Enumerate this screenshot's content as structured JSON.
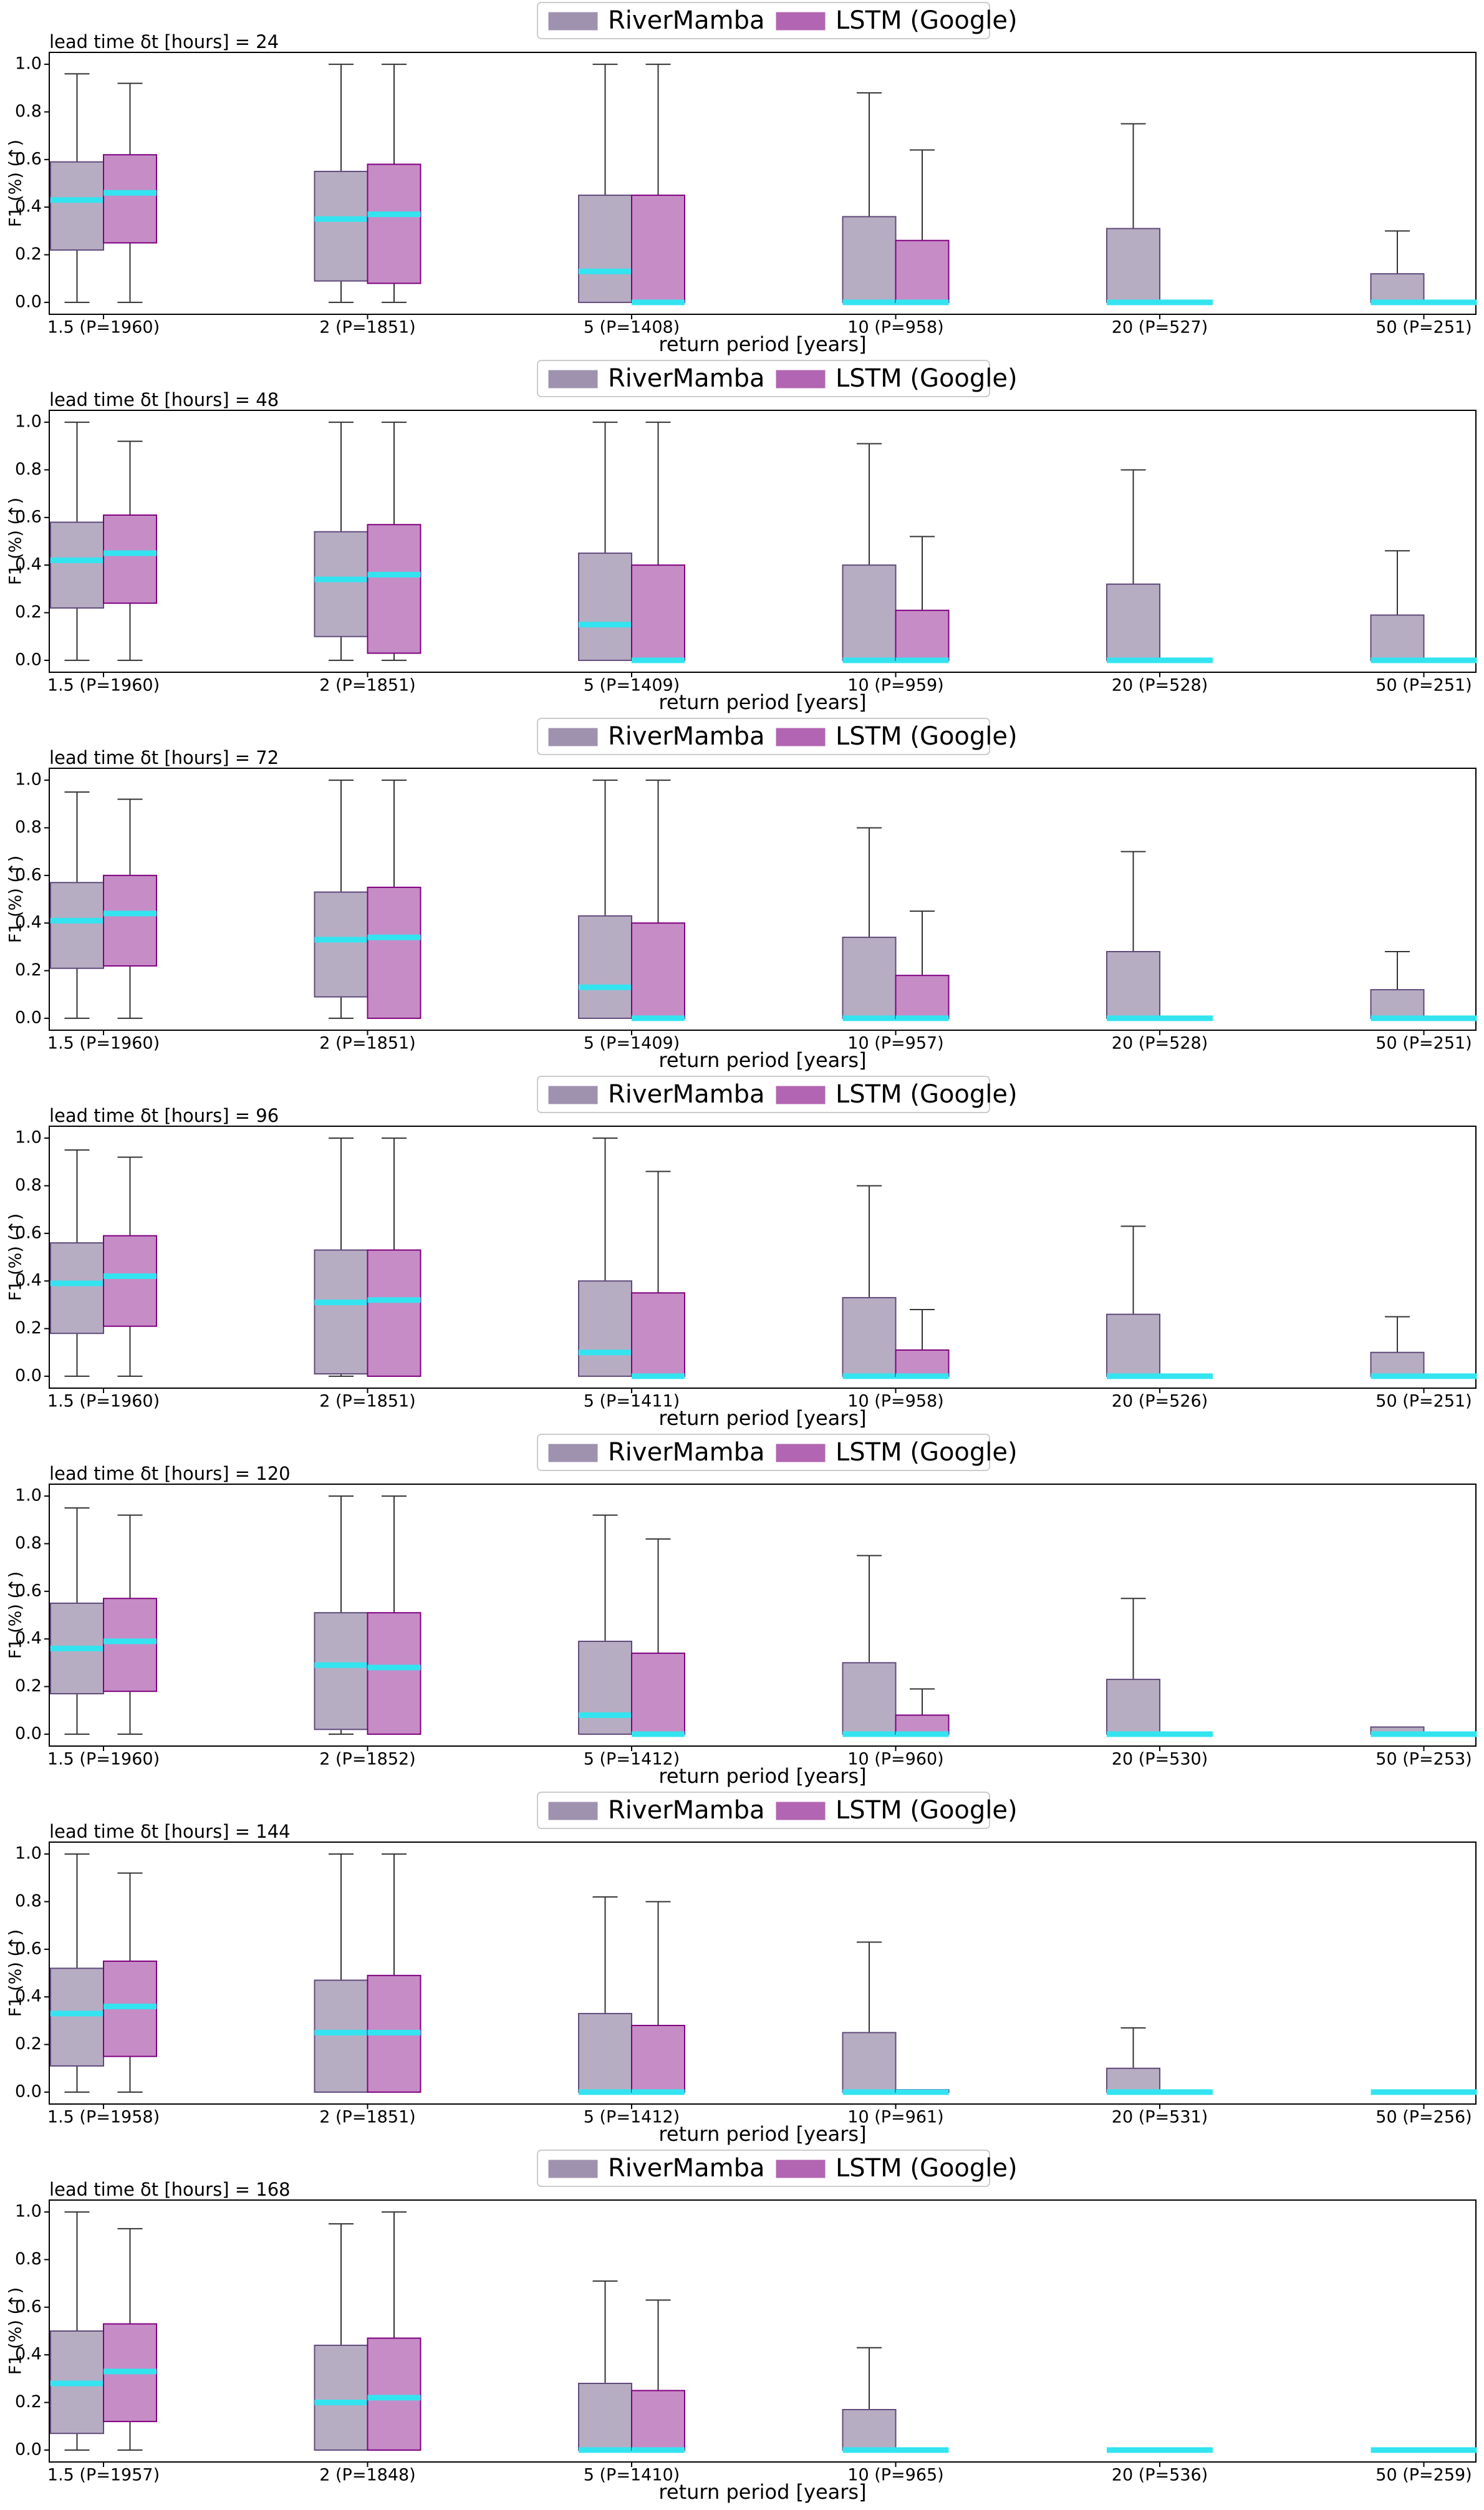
{
  "chart_data": [
    {
      "type": "box",
      "title": "lead time δt [hours] = 24",
      "xlabel": "return period [years]",
      "ylabel": "F1 (%) (↑)",
      "categories": [
        "1.5 (P=1960)",
        "2 (P=1851)",
        "5 (P=1408)",
        "10 (P=958)",
        "20 (P=527)",
        "50 (P=251)"
      ],
      "ylim": [
        -0.05,
        1.05
      ],
      "yticks": [
        {
          "value": 0,
          "label": "0.0"
        },
        0.2,
        0.4,
        0.6,
        0.8,
        {
          "value": 1,
          "label": "1.0"
        }
      ],
      "series": [
        {
          "name": "RiverMamba",
          "color": "#604a7b",
          "values": [
            0.43,
            0.35,
            0.13,
            0,
            0,
            0
          ],
          "q1": [
            0.22,
            0.09,
            0,
            0,
            0,
            0
          ],
          "q3": [
            0.59,
            0.55,
            0.45,
            0.36,
            0.31,
            0.12
          ],
          "whisker": [
            0.96,
            1.0,
            1.0,
            0.88,
            0.75,
            0.3
          ]
        },
        {
          "name": "LSTM (Google)",
          "color": "#800080",
          "values": [
            0.46,
            0.37,
            0,
            0,
            0,
            0
          ],
          "q1": [
            0.25,
            0.08,
            0,
            0,
            0,
            0
          ],
          "q3": [
            0.62,
            0.58,
            0.45,
            0.26,
            0,
            0
          ],
          "whisker": [
            0.92,
            1.0,
            1.0,
            0.64,
            0,
            0
          ]
        }
      ]
    },
    {
      "type": "box",
      "title": "lead time δt [hours] = 48",
      "xlabel": "return period [years]",
      "ylabel": "F1 (%) (↑)",
      "categories": [
        "1.5 (P=1960)",
        "2 (P=1851)",
        "5 (P=1409)",
        "10 (P=959)",
        "20 (P=528)",
        "50 (P=251)"
      ],
      "ylim": [
        -0.05,
        1.05
      ],
      "yticks": [
        {
          "value": 0,
          "label": "0.0"
        },
        0.2,
        0.4,
        0.6,
        0.8,
        {
          "value": 1,
          "label": "1.0"
        }
      ],
      "series": [
        {
          "name": "RiverMamba",
          "color": "#604a7b",
          "values": [
            0.42,
            0.34,
            0.15,
            0,
            0,
            0
          ],
          "q1": [
            0.22,
            0.1,
            0,
            0,
            0,
            0
          ],
          "q3": [
            0.58,
            0.54,
            0.45,
            0.4,
            0.32,
            0.19
          ],
          "whisker": [
            1.0,
            1.0,
            1.0,
            0.91,
            0.8,
            0.46
          ]
        },
        {
          "name": "LSTM (Google)",
          "color": "#800080",
          "values": [
            0.45,
            0.36,
            0,
            0,
            0,
            0
          ],
          "q1": [
            0.24,
            0.03,
            0,
            0,
            0,
            0
          ],
          "q3": [
            0.61,
            0.57,
            0.4,
            0.21,
            0,
            0
          ],
          "whisker": [
            0.92,
            1.0,
            1.0,
            0.52,
            0,
            0
          ]
        }
      ]
    },
    {
      "type": "box",
      "title": "lead time δt [hours] = 72",
      "xlabel": "return period [years]",
      "ylabel": "F1 (%) (↑)",
      "categories": [
        "1.5 (P=1960)",
        "2 (P=1851)",
        "5 (P=1409)",
        "10 (P=957)",
        "20 (P=528)",
        "50 (P=251)"
      ],
      "ylim": [
        -0.05,
        1.05
      ],
      "yticks": [
        {
          "value": 0,
          "label": "0.0"
        },
        0.2,
        0.4,
        0.6,
        0.8,
        {
          "value": 1,
          "label": "1.0"
        }
      ],
      "series": [
        {
          "name": "RiverMamba",
          "color": "#604a7b",
          "values": [
            0.41,
            0.33,
            0.13,
            0,
            0,
            0
          ],
          "q1": [
            0.21,
            0.09,
            0,
            0,
            0,
            0
          ],
          "q3": [
            0.57,
            0.53,
            0.43,
            0.34,
            0.28,
            0.12
          ],
          "whisker": [
            0.95,
            1.0,
            1.0,
            0.8,
            0.7,
            0.28
          ]
        },
        {
          "name": "LSTM (Google)",
          "color": "#800080",
          "values": [
            0.44,
            0.34,
            0,
            0,
            0,
            0
          ],
          "q1": [
            0.22,
            0,
            0,
            0,
            0,
            0
          ],
          "q3": [
            0.6,
            0.55,
            0.4,
            0.18,
            0,
            0
          ],
          "whisker": [
            0.92,
            1.0,
            1.0,
            0.45,
            0,
            0
          ]
        }
      ]
    },
    {
      "type": "box",
      "title": "lead time δt [hours] = 96",
      "xlabel": "return period [years]",
      "ylabel": "F1 (%) (↑)",
      "categories": [
        "1.5 (P=1960)",
        "2 (P=1851)",
        "5 (P=1411)",
        "10 (P=958)",
        "20 (P=526)",
        "50 (P=251)"
      ],
      "ylim": [
        -0.05,
        1.05
      ],
      "yticks": [
        {
          "value": 0,
          "label": "0.0"
        },
        0.2,
        0.4,
        0.6,
        0.8,
        {
          "value": 1,
          "label": "1.0"
        }
      ],
      "series": [
        {
          "name": "RiverMamba",
          "color": "#604a7b",
          "values": [
            0.39,
            0.31,
            0.1,
            0,
            0,
            0
          ],
          "q1": [
            0.18,
            0.01,
            0,
            0,
            0,
            0
          ],
          "q3": [
            0.56,
            0.53,
            0.4,
            0.33,
            0.26,
            0.1
          ],
          "whisker": [
            0.95,
            1.0,
            1.0,
            0.8,
            0.63,
            0.25
          ]
        },
        {
          "name": "LSTM (Google)",
          "color": "#800080",
          "values": [
            0.42,
            0.32,
            0,
            0,
            0,
            0
          ],
          "q1": [
            0.21,
            0,
            0,
            0,
            0,
            0
          ],
          "q3": [
            0.59,
            0.53,
            0.35,
            0.11,
            0,
            0
          ],
          "whisker": [
            0.92,
            1.0,
            0.86,
            0.28,
            0,
            0
          ]
        }
      ]
    },
    {
      "type": "box",
      "title": "lead time δt [hours] = 120",
      "xlabel": "return period [years]",
      "ylabel": "F1 (%) (↑)",
      "categories": [
        "1.5 (P=1960)",
        "2 (P=1852)",
        "5 (P=1412)",
        "10 (P=960)",
        "20 (P=530)",
        "50 (P=253)"
      ],
      "ylim": [
        -0.05,
        1.05
      ],
      "yticks": [
        {
          "value": 0,
          "label": "0.0"
        },
        0.2,
        0.4,
        0.6,
        0.8,
        {
          "value": 1,
          "label": "1.0"
        }
      ],
      "series": [
        {
          "name": "RiverMamba",
          "color": "#604a7b",
          "values": [
            0.36,
            0.29,
            0.08,
            0,
            0,
            0
          ],
          "q1": [
            0.17,
            0.02,
            0,
            0,
            0,
            0
          ],
          "q3": [
            0.55,
            0.51,
            0.39,
            0.3,
            0.23,
            0.03
          ],
          "whisker": [
            0.95,
            1.0,
            0.92,
            0.75,
            0.57,
            0.03
          ]
        },
        {
          "name": "LSTM (Google)",
          "color": "#800080",
          "values": [
            0.39,
            0.28,
            0,
            0,
            0,
            0
          ],
          "q1": [
            0.18,
            0,
            0,
            0,
            0,
            0
          ],
          "q3": [
            0.57,
            0.51,
            0.34,
            0.08,
            0,
            0
          ],
          "whisker": [
            0.92,
            1.0,
            0.82,
            0.19,
            0,
            0
          ]
        }
      ]
    },
    {
      "type": "box",
      "title": "lead time δt [hours] = 144",
      "xlabel": "return period [years]",
      "ylabel": "F1 (%) (↑)",
      "categories": [
        "1.5 (P=1958)",
        "2 (P=1851)",
        "5 (P=1412)",
        "10 (P=961)",
        "20 (P=531)",
        "50 (P=256)"
      ],
      "ylim": [
        -0.05,
        1.05
      ],
      "yticks": [
        {
          "value": 0,
          "label": "0.0"
        },
        0.2,
        0.4,
        0.6,
        0.8,
        {
          "value": 1,
          "label": "1.0"
        }
      ],
      "series": [
        {
          "name": "RiverMamba",
          "color": "#604a7b",
          "values": [
            0.33,
            0.25,
            0,
            0,
            0,
            0
          ],
          "q1": [
            0.11,
            0,
            0,
            0,
            0,
            0
          ],
          "q3": [
            0.52,
            0.47,
            0.33,
            0.25,
            0.1,
            0
          ],
          "whisker": [
            1.0,
            1.0,
            0.82,
            0.63,
            0.27,
            0
          ]
        },
        {
          "name": "LSTM (Google)",
          "color": "#800080",
          "values": [
            0.36,
            0.25,
            0,
            0,
            0,
            0
          ],
          "q1": [
            0.15,
            0,
            0,
            0,
            0,
            0
          ],
          "q3": [
            0.55,
            0.49,
            0.28,
            0.01,
            0,
            0
          ],
          "whisker": [
            0.92,
            1.0,
            0.8,
            0.01,
            0,
            0
          ]
        }
      ]
    },
    {
      "type": "box",
      "title": "lead time δt [hours] = 168",
      "xlabel": "return period [years]",
      "ylabel": "F1 (%) (↑)",
      "categories": [
        "1.5 (P=1957)",
        "2 (P=1848)",
        "5 (P=1410)",
        "10 (P=965)",
        "20 (P=536)",
        "50 (P=259)"
      ],
      "ylim": [
        -0.05,
        1.05
      ],
      "yticks": [
        {
          "value": 0,
          "label": "0.0"
        },
        0.2,
        0.4,
        0.6,
        0.8,
        {
          "value": 1,
          "label": "1.0"
        }
      ],
      "series": [
        {
          "name": "RiverMamba",
          "color": "#604a7b",
          "values": [
            0.28,
            0.2,
            0,
            0,
            0,
            0
          ],
          "q1": [
            0.07,
            0,
            0,
            0,
            0,
            0
          ],
          "q3": [
            0.5,
            0.44,
            0.28,
            0.17,
            0,
            0
          ],
          "whisker": [
            1.0,
            0.95,
            0.71,
            0.43,
            0,
            0
          ]
        },
        {
          "name": "LSTM (Google)",
          "color": "#800080",
          "values": [
            0.33,
            0.22,
            0,
            0,
            0,
            0
          ],
          "q1": [
            0.12,
            0,
            0,
            0,
            0,
            0
          ],
          "q3": [
            0.53,
            0.47,
            0.25,
            0,
            0,
            0
          ],
          "whisker": [
            0.93,
            1.0,
            0.63,
            0,
            0,
            0
          ]
        }
      ]
    }
  ]
}
